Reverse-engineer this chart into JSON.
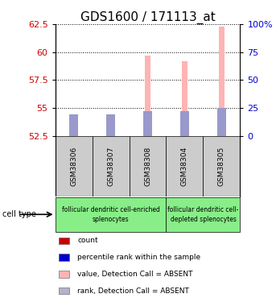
{
  "title": "GDS1600 / 171113_at",
  "samples": [
    "GSM38306",
    "GSM38307",
    "GSM38308",
    "GSM38304",
    "GSM38305"
  ],
  "ylim_left": [
    52.5,
    62.5
  ],
  "ylim_right": [
    0,
    100
  ],
  "yticks_left": [
    52.5,
    55.0,
    57.5,
    60.0,
    62.5
  ],
  "yticks_right": [
    0,
    25,
    50,
    75,
    100
  ],
  "ytick_labels_right": [
    "0",
    "25",
    "50",
    "75",
    "100%"
  ],
  "value_bars": [
    54.1,
    54.1,
    59.7,
    59.2,
    62.3
  ],
  "rank_bars": [
    54.45,
    54.45,
    54.7,
    54.7,
    55.0
  ],
  "bar_base": 52.5,
  "value_bar_color": "#ffb3b3",
  "rank_bar_color": "#9999cc",
  "count_color": "#cc0000",
  "percentile_color": "#0000cc",
  "cell_types": [
    {
      "label": "follicular dendritic cell-enriched\nsplenocytes",
      "color": "#88ee88",
      "samples": [
        0,
        1,
        2
      ]
    },
    {
      "label": "follicular dendritic cell-\ndepleted splenocytes",
      "color": "#88ee88",
      "samples": [
        3,
        4
      ]
    }
  ],
  "legend_items": [
    {
      "color": "#cc0000",
      "label": "count"
    },
    {
      "color": "#0000cc",
      "label": "percentile rank within the sample"
    },
    {
      "color": "#ffb3b3",
      "label": "value, Detection Call = ABSENT"
    },
    {
      "color": "#b3b3cc",
      "label": "rank, Detection Call = ABSENT"
    }
  ],
  "cell_type_label": "cell type",
  "value_bar_width": 0.15,
  "rank_bar_width": 0.25,
  "dotted_line_color": "#000000",
  "title_fontsize": 11,
  "tick_fontsize": 8,
  "label_fontsize": 8,
  "sample_box_color": "#cccccc",
  "background_color": "#ffffff"
}
